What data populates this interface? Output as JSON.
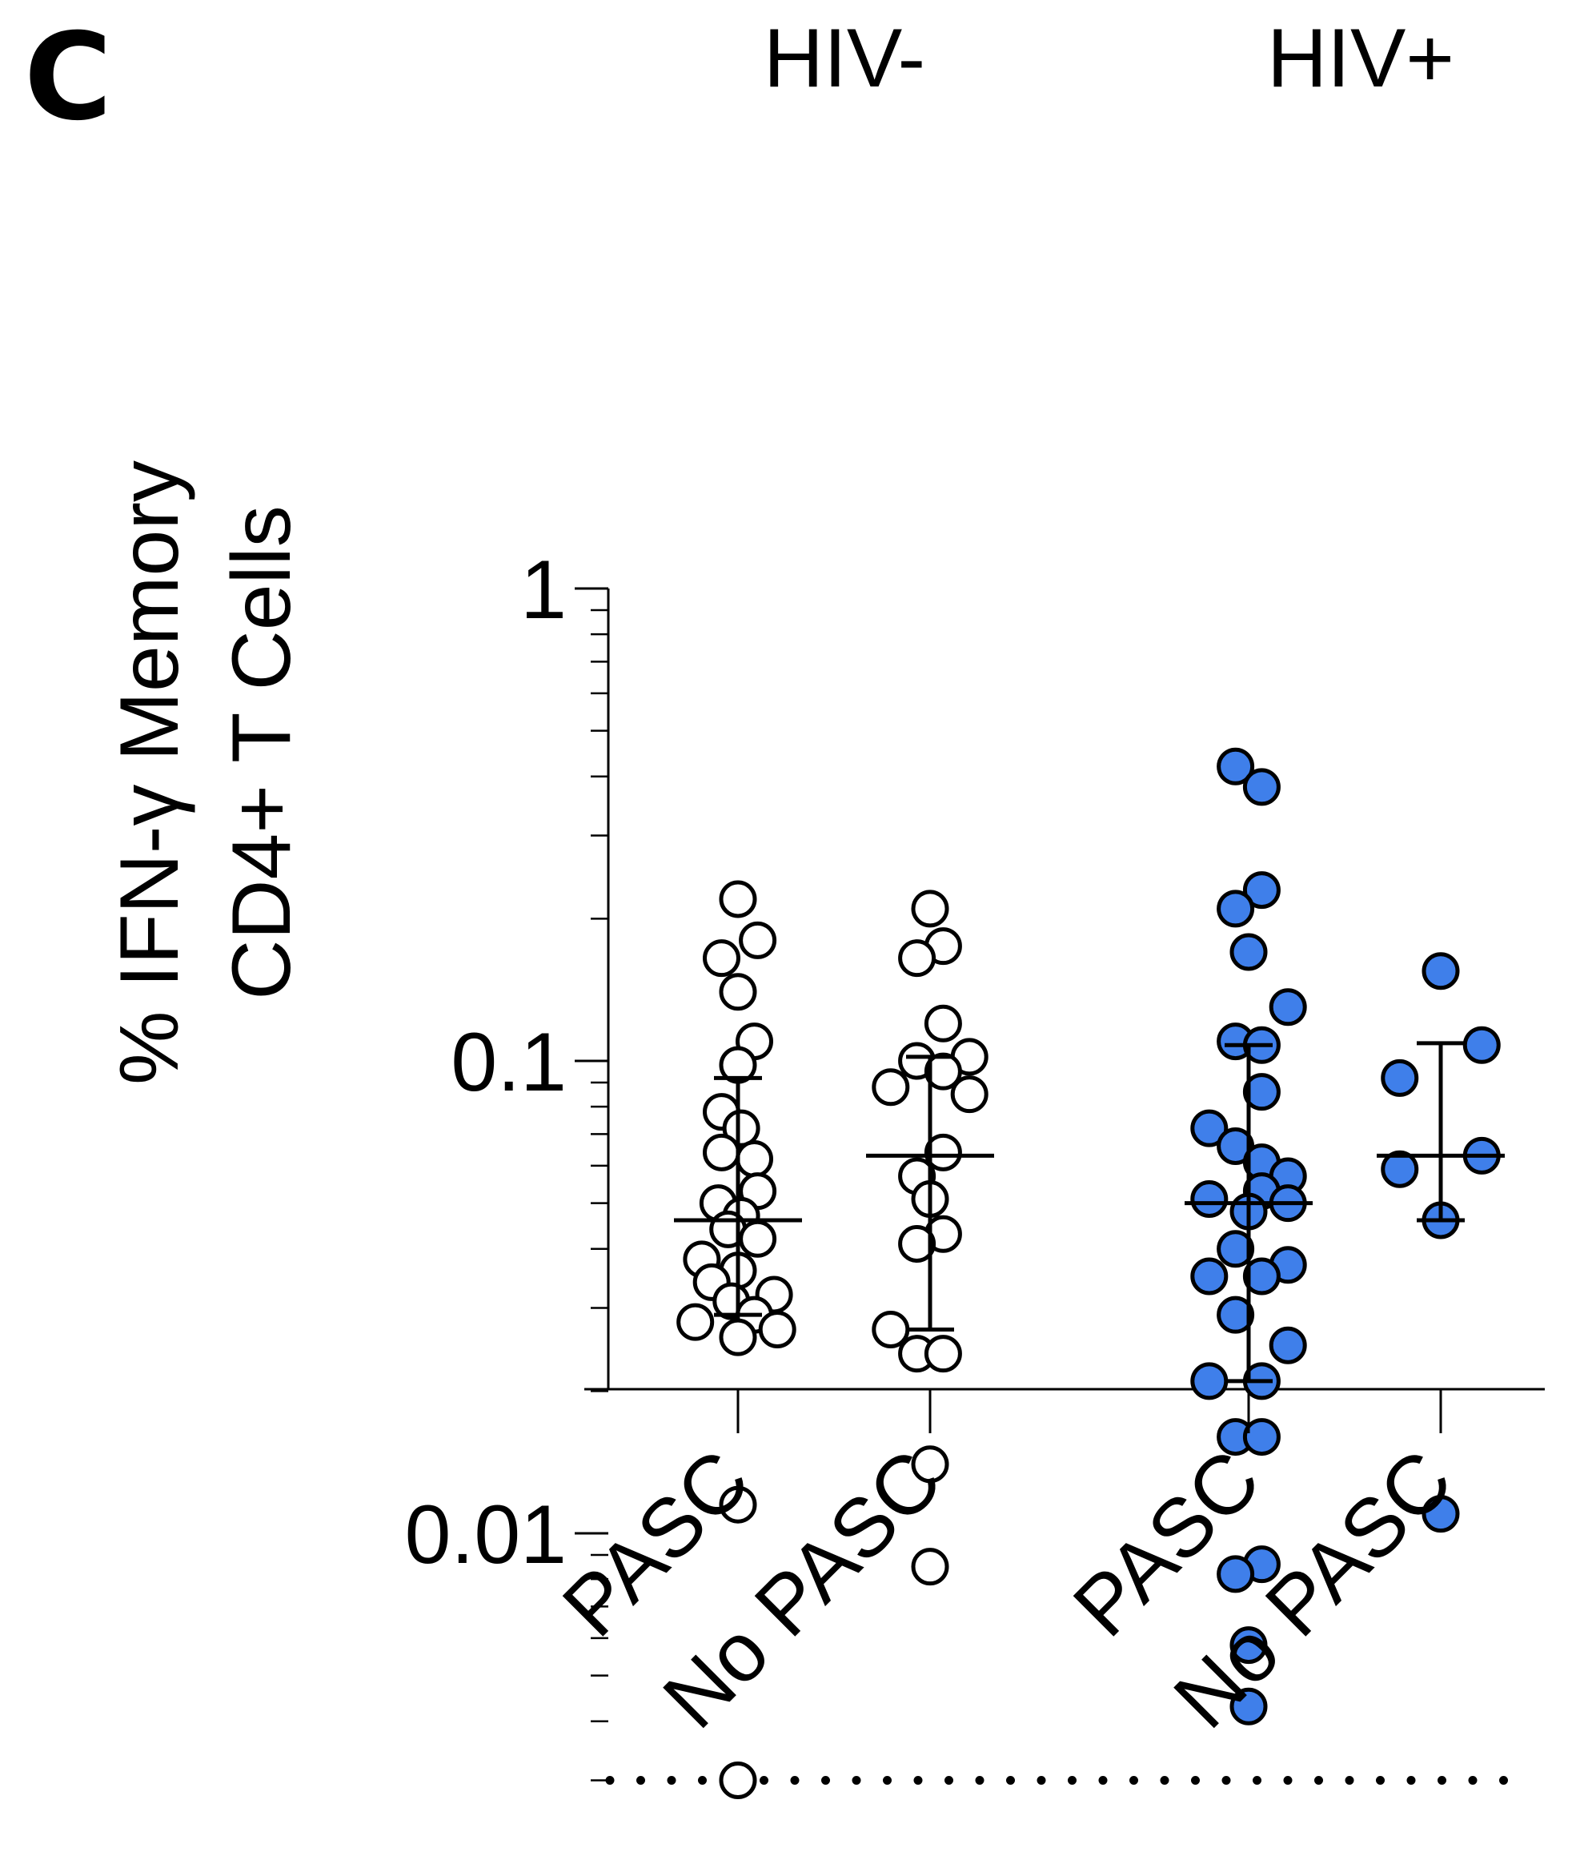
{
  "panel_label": "C",
  "chart_data": {
    "type": "scatter",
    "ylabel_line1": "% IFN-γ Memory",
    "ylabel_line2": "CD4+ T Cells",
    "yscale": "log",
    "ylim": [
      0.0015,
      1
    ],
    "yticks": [
      {
        "value": 1,
        "label": "1"
      },
      {
        "value": 0.1,
        "label": "0.1"
      },
      {
        "value": 0.01,
        "label": "0.01"
      }
    ],
    "detection_limit": 0.003,
    "groups": [
      {
        "name": "HIV-",
        "categories": [
          0,
          1
        ]
      },
      {
        "name": "HIV+",
        "categories": [
          2,
          3
        ]
      }
    ],
    "categories": [
      "PASC",
      "No PASC",
      "PASC",
      "No PASC"
    ],
    "colors": {
      "hiv_neg_fill": "#ffffff",
      "hiv_pos_fill": "#3f7fea",
      "stroke": "#000000"
    },
    "series": [
      {
        "category": 0,
        "fill": "hiv_neg_fill",
        "median": 0.046,
        "q1": 0.029,
        "q3": 0.092,
        "points": [
          {
            "y": 0.22,
            "dx": 0
          },
          {
            "y": 0.18,
            "dx": 0.12
          },
          {
            "y": 0.165,
            "dx": -0.1
          },
          {
            "y": 0.14,
            "dx": 0
          },
          {
            "y": 0.11,
            "dx": 0.1
          },
          {
            "y": 0.098,
            "dx": 0
          },
          {
            "y": 0.078,
            "dx": -0.1
          },
          {
            "y": 0.072,
            "dx": 0.02
          },
          {
            "y": 0.064,
            "dx": -0.1
          },
          {
            "y": 0.062,
            "dx": 0.1
          },
          {
            "y": 0.053,
            "dx": 0.12
          },
          {
            "y": 0.05,
            "dx": -0.12
          },
          {
            "y": 0.047,
            "dx": 0.02
          },
          {
            "y": 0.044,
            "dx": -0.06
          },
          {
            "y": 0.042,
            "dx": 0.12
          },
          {
            "y": 0.038,
            "dx": -0.22
          },
          {
            "y": 0.036,
            "dx": 0
          },
          {
            "y": 0.034,
            "dx": -0.16
          },
          {
            "y": 0.032,
            "dx": 0.22
          },
          {
            "y": 0.031,
            "dx": -0.04
          },
          {
            "y": 0.029,
            "dx": 0.1
          },
          {
            "y": 0.028,
            "dx": -0.26
          },
          {
            "y": 0.027,
            "dx": 0.24
          },
          {
            "y": 0.026,
            "dx": 0
          },
          {
            "y": 0.0115,
            "dx": 0
          },
          {
            "y": 0.003,
            "dx": 0
          }
        ]
      },
      {
        "category": 1,
        "fill": "hiv_neg_fill",
        "median": 0.063,
        "q1": 0.027,
        "q3": 0.102,
        "points": [
          {
            "y": 0.21,
            "dx": 0
          },
          {
            "y": 0.175,
            "dx": 0.08
          },
          {
            "y": 0.165,
            "dx": -0.08
          },
          {
            "y": 0.12,
            "dx": 0.08
          },
          {
            "y": 0.102,
            "dx": 0.24
          },
          {
            "y": 0.1,
            "dx": -0.08
          },
          {
            "y": 0.095,
            "dx": 0.08
          },
          {
            "y": 0.088,
            "dx": -0.24
          },
          {
            "y": 0.085,
            "dx": 0.24
          },
          {
            "y": 0.064,
            "dx": 0.08
          },
          {
            "y": 0.057,
            "dx": -0.08
          },
          {
            "y": 0.051,
            "dx": 0
          },
          {
            "y": 0.043,
            "dx": 0.08
          },
          {
            "y": 0.041,
            "dx": -0.08
          },
          {
            "y": 0.027,
            "dx": -0.24
          },
          {
            "y": 0.024,
            "dx": -0.08
          },
          {
            "y": 0.024,
            "dx": 0.08
          },
          {
            "y": 0.014,
            "dx": 0
          },
          {
            "y": 0.0085,
            "dx": 0
          }
        ]
      },
      {
        "category": 2,
        "fill": "hiv_pos_fill",
        "median": 0.05,
        "q1": 0.021,
        "q3": 0.108,
        "points": [
          {
            "y": 0.42,
            "dx": -0.08
          },
          {
            "y": 0.38,
            "dx": 0.08
          },
          {
            "y": 0.23,
            "dx": 0.08
          },
          {
            "y": 0.21,
            "dx": -0.08
          },
          {
            "y": 0.17,
            "dx": 0
          },
          {
            "y": 0.13,
            "dx": 0.24
          },
          {
            "y": 0.11,
            "dx": -0.08
          },
          {
            "y": 0.108,
            "dx": 0.08
          },
          {
            "y": 0.086,
            "dx": 0.08
          },
          {
            "y": 0.072,
            "dx": -0.24
          },
          {
            "y": 0.066,
            "dx": -0.08
          },
          {
            "y": 0.061,
            "dx": 0.08
          },
          {
            "y": 0.057,
            "dx": 0.24
          },
          {
            "y": 0.053,
            "dx": 0.08
          },
          {
            "y": 0.051,
            "dx": -0.24
          },
          {
            "y": 0.05,
            "dx": 0.24
          },
          {
            "y": 0.048,
            "dx": 0
          },
          {
            "y": 0.04,
            "dx": -0.08
          },
          {
            "y": 0.037,
            "dx": 0.24
          },
          {
            "y": 0.035,
            "dx": -0.24
          },
          {
            "y": 0.035,
            "dx": 0.08
          },
          {
            "y": 0.029,
            "dx": -0.08
          },
          {
            "y": 0.025,
            "dx": 0.24
          },
          {
            "y": 0.021,
            "dx": -0.24
          },
          {
            "y": 0.021,
            "dx": 0.08
          },
          {
            "y": 0.016,
            "dx": -0.08
          },
          {
            "y": 0.016,
            "dx": 0.08
          },
          {
            "y": 0.0086,
            "dx": 0.08
          },
          {
            "y": 0.0082,
            "dx": -0.08
          },
          {
            "y": 0.0058,
            "dx": 0
          },
          {
            "y": 0.0043,
            "dx": 0
          }
        ]
      },
      {
        "category": 3,
        "fill": "hiv_pos_fill",
        "median": 0.063,
        "q1": 0.046,
        "q3": 0.109,
        "points": [
          {
            "y": 0.155,
            "dx": 0
          },
          {
            "y": 0.108,
            "dx": 0.25
          },
          {
            "y": 0.092,
            "dx": -0.25
          },
          {
            "y": 0.063,
            "dx": 0.25
          },
          {
            "y": 0.059,
            "dx": -0.25
          },
          {
            "y": 0.046,
            "dx": 0
          },
          {
            "y": 0.011,
            "dx": 0
          }
        ]
      }
    ]
  }
}
